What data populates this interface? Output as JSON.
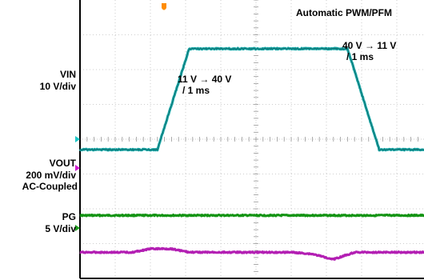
{
  "labels": {
    "mode": "Automatic PWM/PFM",
    "vin_name": "VIN",
    "vin_scale": "10 V/div",
    "vout_name": "VOUT",
    "vout_scale": "200 mV/div",
    "vout_coupling": "AC-Coupled",
    "pg_name": "PG",
    "pg_scale": "5 V/div",
    "ramp_up_line1": "11 V → 40 V",
    "ramp_up_line2": "/ 1 ms",
    "ramp_down_line1": "40 V → 11 V",
    "ramp_down_line2": "/ 1 ms"
  },
  "chart_data": {
    "type": "line",
    "title": "Automatic PWM/PFM",
    "grid": true,
    "time_divisions": 10,
    "vertical_divisions": 8,
    "series": [
      {
        "name": "VIN",
        "color": "#1aa9a9",
        "scale": "10 V/div",
        "x": [
          0,
          2.2,
          3.1,
          7.6,
          8.5,
          10
        ],
        "y": [
          11,
          11,
          40,
          40,
          11,
          11
        ]
      },
      {
        "name": "VOUT",
        "color": "#b31fb3",
        "scale": "200 mV/div",
        "coupling": "AC",
        "x": [
          0,
          1.5,
          2.0,
          2.6,
          3.1,
          6.0,
          6.6,
          7.2,
          7.8,
          10
        ],
        "y": [
          0,
          0,
          0.02,
          0.02,
          0,
          0,
          -0.01,
          -0.04,
          0,
          0
        ]
      },
      {
        "name": "PG",
        "color": "#149414",
        "scale": "5 V/div",
        "x": [
          0,
          10
        ],
        "y": [
          5,
          5
        ]
      }
    ],
    "markers": [
      {
        "label": "trigger",
        "color": "#ff8c00",
        "position": "top"
      },
      {
        "label": "ch1-ground",
        "color": "#1ec8c8"
      },
      {
        "label": "ch2-ground",
        "color": "#d21ed2"
      },
      {
        "label": "ch3-ground",
        "color": "#1ea01e"
      }
    ]
  }
}
